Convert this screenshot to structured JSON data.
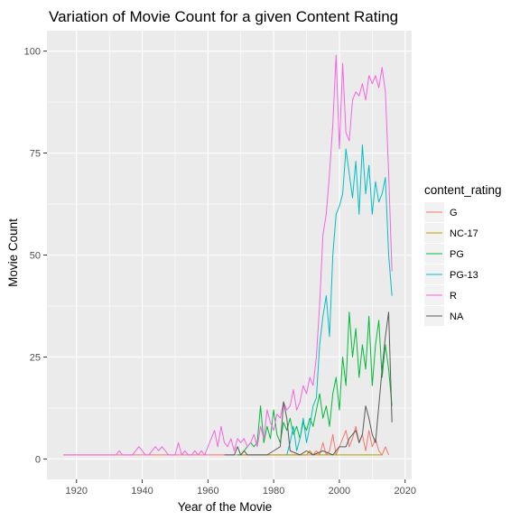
{
  "chart_data": {
    "type": "line",
    "title": "Variation of Movie Count for  a given Content Rating",
    "xlabel": "Year of the Movie",
    "ylabel": "Movie Count",
    "xlim": [
      1911,
      2022
    ],
    "ylim": [
      -5,
      105
    ],
    "x_ticks": [
      1920,
      1940,
      1960,
      1980,
      2000,
      2020
    ],
    "y_ticks": [
      0,
      25,
      50,
      75,
      100
    ],
    "grid": true,
    "legend": {
      "title": "content_rating",
      "position": "right"
    },
    "series": [
      {
        "name": "G",
        "color": "#F8766D",
        "points": [
          [
            1916,
            1
          ],
          [
            1930,
            1
          ],
          [
            1937,
            1
          ],
          [
            1939,
            1
          ],
          [
            1940,
            1
          ],
          [
            1946,
            1
          ],
          [
            1950,
            1
          ],
          [
            1955,
            1
          ],
          [
            1960,
            1
          ],
          [
            1964,
            1
          ],
          [
            1966,
            1
          ],
          [
            1968,
            1
          ],
          [
            1970,
            1
          ],
          [
            1971,
            1
          ],
          [
            1972,
            1
          ],
          [
            1975,
            1
          ],
          [
            1978,
            1
          ],
          [
            1981,
            1
          ],
          [
            1985,
            1
          ],
          [
            1986,
            1
          ],
          [
            1988,
            1
          ],
          [
            1989,
            1
          ],
          [
            1990,
            1
          ],
          [
            1992,
            1
          ],
          [
            1993,
            2
          ],
          [
            1994,
            1
          ],
          [
            1995,
            4
          ],
          [
            1996,
            1
          ],
          [
            1997,
            2
          ],
          [
            1998,
            6
          ],
          [
            1999,
            1
          ],
          [
            2000,
            3
          ],
          [
            2001,
            5
          ],
          [
            2002,
            7
          ],
          [
            2003,
            3
          ],
          [
            2004,
            5
          ],
          [
            2005,
            8
          ],
          [
            2006,
            4
          ],
          [
            2007,
            6
          ],
          [
            2008,
            2
          ],
          [
            2009,
            7
          ],
          [
            2010,
            3
          ],
          [
            2011,
            5
          ],
          [
            2012,
            2
          ],
          [
            2013,
            1
          ],
          [
            2014,
            3
          ],
          [
            2015,
            1
          ]
        ]
      },
      {
        "name": "NC-17",
        "color": "#B79F00",
        "points": [
          [
            1969,
            1
          ],
          [
            1990,
            1
          ],
          [
            1991,
            2
          ],
          [
            1992,
            1
          ],
          [
            1995,
            1
          ],
          [
            1996,
            1
          ],
          [
            1998,
            1
          ],
          [
            2000,
            1
          ],
          [
            2001,
            1
          ],
          [
            2003,
            1
          ],
          [
            2004,
            1
          ],
          [
            2007,
            1
          ],
          [
            2010,
            1
          ],
          [
            2011,
            1
          ],
          [
            2012,
            1
          ],
          [
            2013,
            1
          ]
        ]
      },
      {
        "name": "PG",
        "color": "#00BA38",
        "points": [
          [
            1969,
            1
          ],
          [
            1970,
            1
          ],
          [
            1972,
            3
          ],
          [
            1973,
            4
          ],
          [
            1974,
            3
          ],
          [
            1975,
            4
          ],
          [
            1976,
            13
          ],
          [
            1977,
            4
          ],
          [
            1978,
            8
          ],
          [
            1979,
            5
          ],
          [
            1980,
            12
          ],
          [
            1981,
            6
          ],
          [
            1982,
            4
          ],
          [
            1983,
            9
          ],
          [
            1984,
            7
          ],
          [
            1985,
            10
          ],
          [
            1986,
            6
          ],
          [
            1987,
            8
          ],
          [
            1988,
            5
          ],
          [
            1989,
            9
          ],
          [
            1990,
            7
          ],
          [
            1991,
            10
          ],
          [
            1992,
            8
          ],
          [
            1993,
            12
          ],
          [
            1994,
            16
          ],
          [
            1995,
            10
          ],
          [
            1996,
            13
          ],
          [
            1997,
            8
          ],
          [
            1998,
            16
          ],
          [
            1999,
            20
          ],
          [
            2000,
            12
          ],
          [
            2001,
            25
          ],
          [
            2002,
            18
          ],
          [
            2003,
            36
          ],
          [
            2004,
            25
          ],
          [
            2005,
            32
          ],
          [
            2006,
            20
          ],
          [
            2007,
            28
          ],
          [
            2008,
            22
          ],
          [
            2009,
            35
          ],
          [
            2010,
            18
          ],
          [
            2011,
            28
          ],
          [
            2012,
            34
          ],
          [
            2013,
            20
          ],
          [
            2014,
            28
          ],
          [
            2015,
            22
          ],
          [
            2016,
            13
          ]
        ]
      },
      {
        "name": "PG-13",
        "color": "#00BFC4",
        "points": [
          [
            1984,
            1
          ],
          [
            1985,
            4
          ],
          [
            1986,
            8
          ],
          [
            1987,
            2
          ],
          [
            1988,
            5
          ],
          [
            1989,
            10
          ],
          [
            1990,
            4
          ],
          [
            1991,
            8
          ],
          [
            1992,
            13
          ],
          [
            1993,
            15
          ],
          [
            1994,
            28
          ],
          [
            1995,
            35
          ],
          [
            1996,
            40
          ],
          [
            1997,
            30
          ],
          [
            1998,
            50
          ],
          [
            1999,
            60
          ],
          [
            2000,
            62
          ],
          [
            2001,
            65
          ],
          [
            2002,
            76
          ],
          [
            2003,
            70
          ],
          [
            2004,
            64
          ],
          [
            2005,
            73
          ],
          [
            2006,
            60
          ],
          [
            2007,
            77
          ],
          [
            2008,
            65
          ],
          [
            2009,
            72
          ],
          [
            2010,
            60
          ],
          [
            2011,
            68
          ],
          [
            2012,
            63
          ],
          [
            2013,
            65
          ],
          [
            2014,
            69
          ],
          [
            2015,
            50
          ],
          [
            2016,
            40
          ]
        ]
      },
      {
        "name": "R",
        "color": "#F564E3",
        "points": [
          [
            1916,
            1
          ],
          [
            1932,
            1
          ],
          [
            1933,
            2
          ],
          [
            1934,
            1
          ],
          [
            1936,
            1
          ],
          [
            1937,
            1
          ],
          [
            1938,
            2
          ],
          [
            1939,
            3
          ],
          [
            1940,
            2
          ],
          [
            1941,
            1
          ],
          [
            1942,
            1
          ],
          [
            1944,
            3
          ],
          [
            1945,
            2
          ],
          [
            1946,
            3
          ],
          [
            1947,
            2
          ],
          [
            1948,
            1
          ],
          [
            1950,
            1
          ],
          [
            1951,
            4
          ],
          [
            1952,
            1
          ],
          [
            1953,
            2
          ],
          [
            1954,
            1
          ],
          [
            1955,
            1
          ],
          [
            1956,
            2
          ],
          [
            1957,
            1
          ],
          [
            1958,
            2
          ],
          [
            1959,
            1
          ],
          [
            1960,
            3
          ],
          [
            1961,
            5
          ],
          [
            1962,
            7
          ],
          [
            1963,
            3
          ],
          [
            1964,
            8
          ],
          [
            1965,
            4
          ],
          [
            1966,
            3
          ],
          [
            1967,
            5
          ],
          [
            1968,
            2
          ],
          [
            1969,
            5
          ],
          [
            1970,
            4
          ],
          [
            1971,
            5
          ],
          [
            1972,
            3
          ],
          [
            1973,
            4
          ],
          [
            1974,
            6
          ],
          [
            1975,
            3
          ],
          [
            1976,
            8
          ],
          [
            1977,
            5
          ],
          [
            1978,
            12
          ],
          [
            1979,
            9
          ],
          [
            1980,
            7
          ],
          [
            1981,
            11
          ],
          [
            1982,
            10
          ],
          [
            1983,
            14
          ],
          [
            1984,
            12
          ],
          [
            1985,
            13
          ],
          [
            1986,
            17
          ],
          [
            1987,
            12
          ],
          [
            1988,
            14
          ],
          [
            1989,
            18
          ],
          [
            1990,
            16
          ],
          [
            1991,
            20
          ],
          [
            1992,
            18
          ],
          [
            1993,
            25
          ],
          [
            1994,
            38
          ],
          [
            1995,
            55
          ],
          [
            1996,
            60
          ],
          [
            1997,
            70
          ],
          [
            1998,
            82
          ],
          [
            1999,
            99
          ],
          [
            2000,
            76
          ],
          [
            2001,
            97
          ],
          [
            2002,
            80
          ],
          [
            2003,
            78
          ],
          [
            2004,
            88
          ],
          [
            2005,
            90
          ],
          [
            2006,
            89
          ],
          [
            2007,
            92
          ],
          [
            2008,
            88
          ],
          [
            2009,
            94
          ],
          [
            2010,
            92
          ],
          [
            2011,
            94
          ],
          [
            2012,
            91
          ],
          [
            2013,
            96
          ],
          [
            2014,
            90
          ],
          [
            2015,
            70
          ],
          [
            2016,
            46
          ]
        ]
      },
      {
        "name": "NA",
        "color": "#595959",
        "points": [
          [
            1965,
            1
          ],
          [
            1967,
            1
          ],
          [
            1968,
            1
          ],
          [
            1969,
            3
          ],
          [
            1970,
            1
          ],
          [
            1971,
            2
          ],
          [
            1972,
            1
          ],
          [
            1975,
            1
          ],
          [
            1978,
            1
          ],
          [
            1980,
            2
          ],
          [
            1982,
            3
          ],
          [
            1983,
            14
          ],
          [
            1984,
            10
          ],
          [
            1985,
            2
          ],
          [
            1988,
            1
          ],
          [
            1990,
            2
          ],
          [
            1992,
            1
          ],
          [
            1995,
            2
          ],
          [
            1998,
            1
          ],
          [
            2000,
            3
          ],
          [
            2002,
            3
          ],
          [
            2003,
            5
          ],
          [
            2005,
            7
          ],
          [
            2006,
            4
          ],
          [
            2007,
            6
          ],
          [
            2008,
            13
          ],
          [
            2009,
            10
          ],
          [
            2010,
            6
          ],
          [
            2011,
            4
          ],
          [
            2012,
            13
          ],
          [
            2013,
            22
          ],
          [
            2014,
            30
          ],
          [
            2015,
            36
          ],
          [
            2016,
            9
          ]
        ]
      }
    ]
  }
}
